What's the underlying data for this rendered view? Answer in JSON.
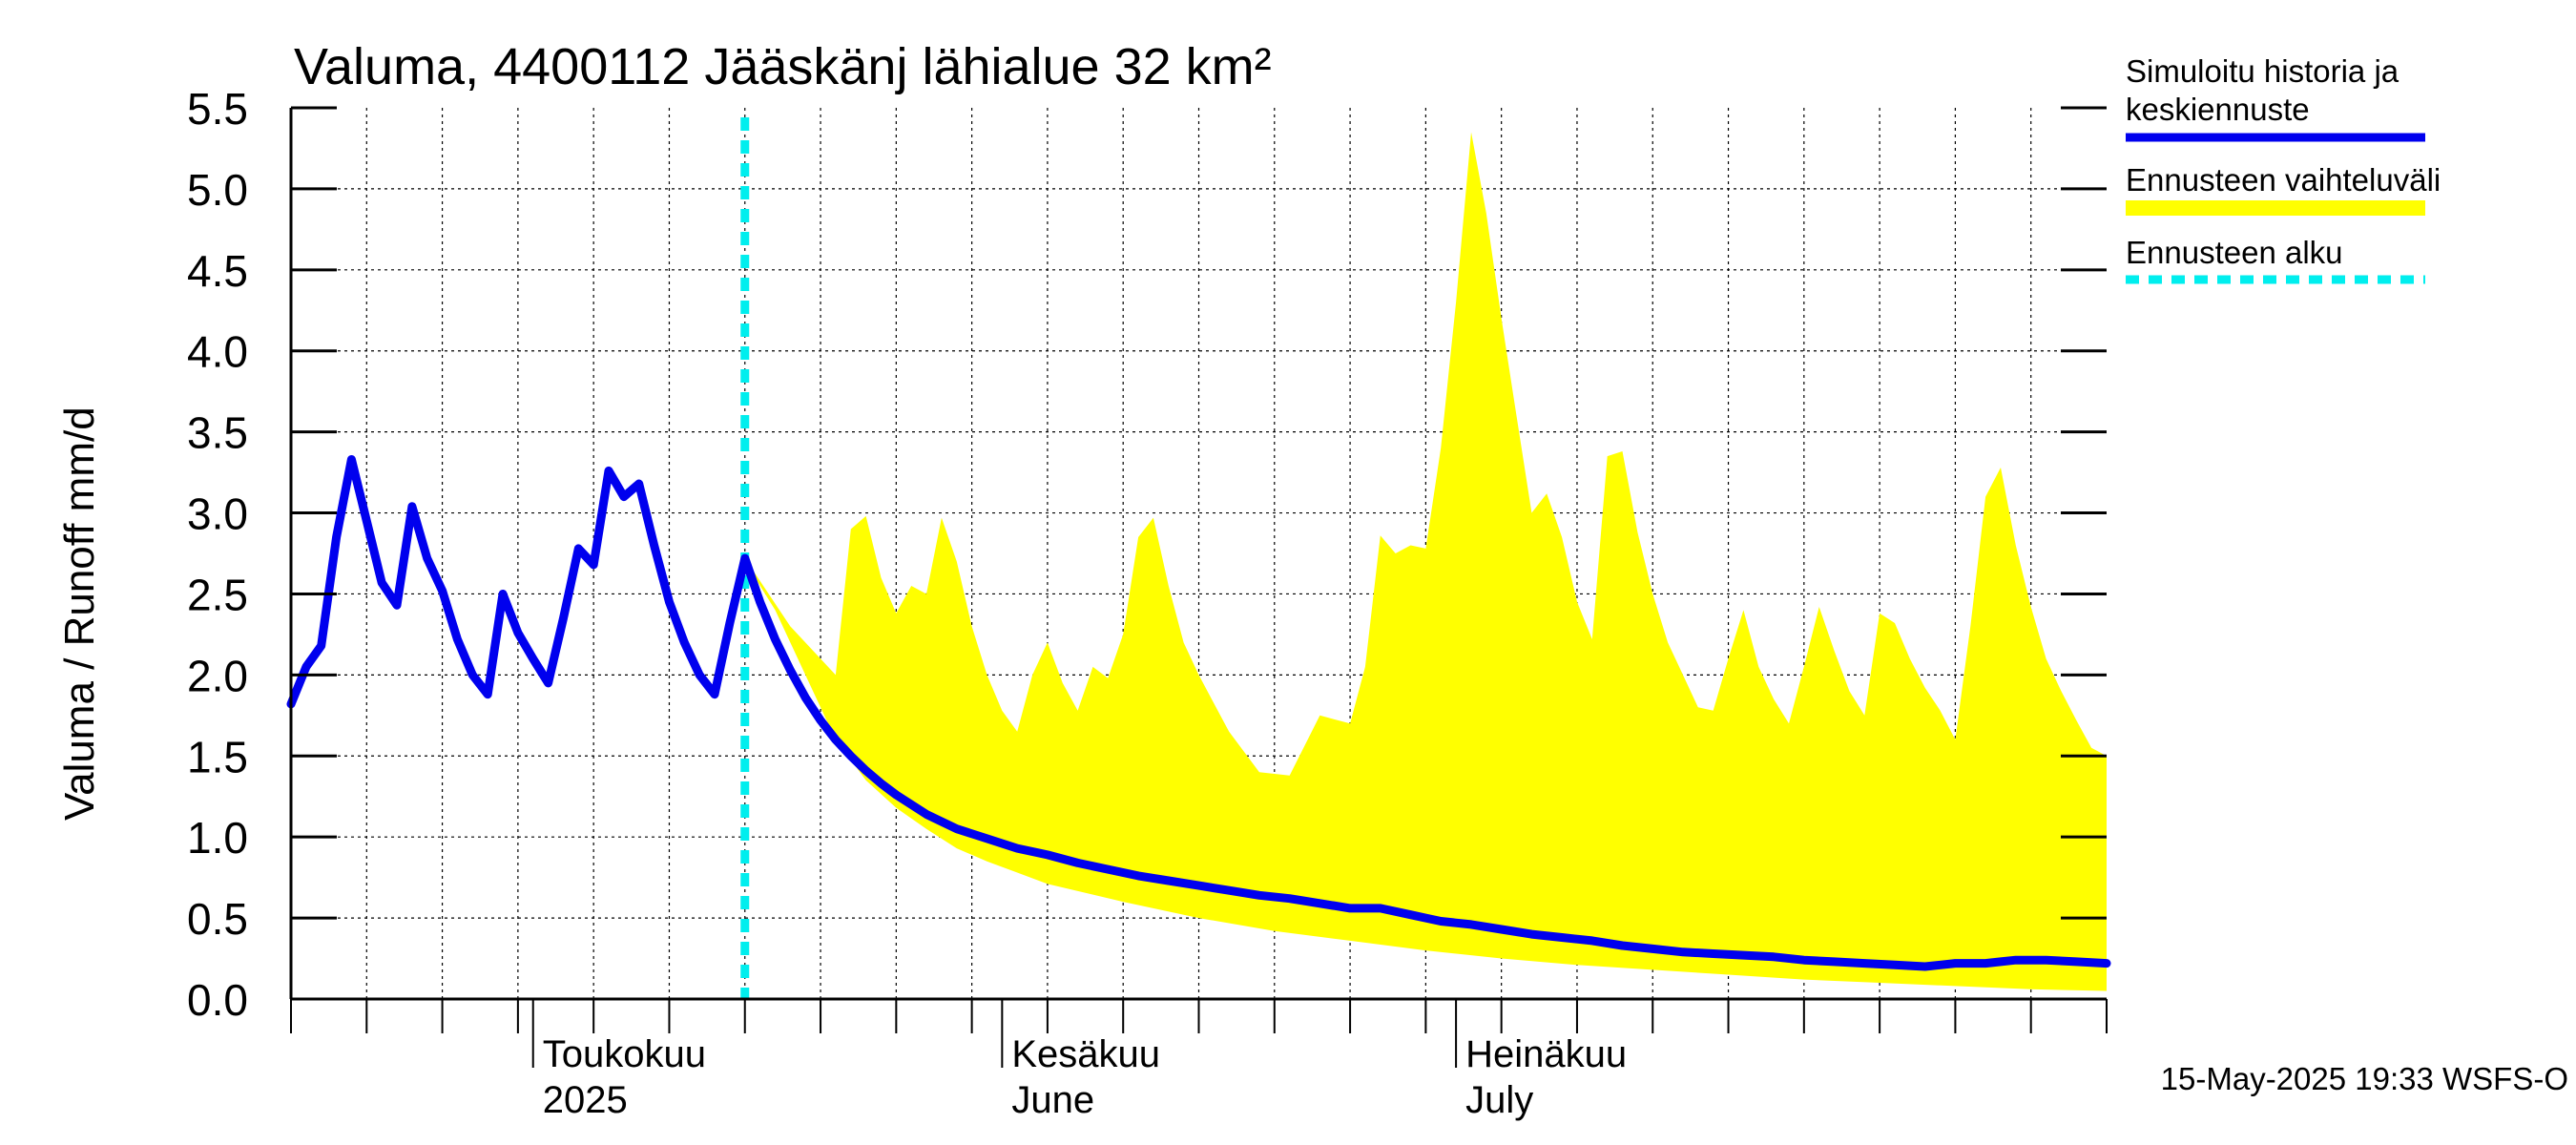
{
  "chart_data": {
    "type": "line",
    "title": "Valuma, 4400112 Jääskänj lähialue 32 km²",
    "ylabel": "Valuma / Runoff     mm/d",
    "ylim": [
      0,
      5.5
    ],
    "yticks": [
      "0.0",
      "0.5",
      "1.0",
      "1.5",
      "2.0",
      "2.5",
      "3.0",
      "3.5",
      "4.0",
      "4.5",
      "5.0",
      "5.5"
    ],
    "xlim_days": [
      0,
      120
    ],
    "month_labels": [
      {
        "line1": "Toukokuu",
        "line2": "2025",
        "day": 16
      },
      {
        "line1": "Kesäkuu",
        "line2": "June",
        "day": 47
      },
      {
        "line1": "Heinäkuu",
        "line2": "July",
        "day": 77
      }
    ],
    "forecast_start_day": 30,
    "legend": [
      {
        "label_line1": "Simuloitu historia ja",
        "label_line2": "keskiennuste",
        "color": "#0000ee",
        "style": "solid"
      },
      {
        "label_line1": "Ennusteen vaihteluväli",
        "label_line2": "",
        "color": "#ffff00",
        "style": "band"
      },
      {
        "label_line1": "Ennusteen alku",
        "label_line2": "",
        "color": "#00eeee",
        "style": "dashed"
      }
    ],
    "timestamp": "15-May-2025 19:33 WSFS-O",
    "series": [
      {
        "name": "Simuloitu historia ja keskiennuste",
        "color": "#0000ee",
        "x": [
          0,
          1,
          2,
          3,
          4,
          5,
          6,
          7,
          8,
          9,
          10,
          11,
          12,
          13,
          14,
          15,
          16,
          17,
          18,
          19,
          20,
          21,
          22,
          23,
          24,
          25,
          26,
          27,
          28,
          29,
          30,
          31,
          32,
          33,
          34,
          35,
          36,
          37,
          38,
          39,
          40,
          42,
          44,
          46,
          48,
          50,
          52,
          54,
          56,
          58,
          60,
          62,
          64,
          66,
          68,
          70,
          72,
          74,
          75,
          76,
          78,
          80,
          82,
          84,
          86,
          88,
          90,
          92,
          94,
          96,
          98,
          100,
          102,
          104,
          106,
          108,
          110,
          112,
          113,
          114,
          115,
          116,
          118,
          120
        ],
        "values": [
          1.82,
          2.05,
          2.18,
          2.85,
          3.33,
          2.95,
          2.57,
          2.43,
          3.04,
          2.72,
          2.52,
          2.22,
          2.0,
          1.88,
          2.5,
          2.26,
          2.1,
          1.95,
          2.35,
          2.78,
          2.68,
          3.26,
          3.1,
          3.18,
          2.8,
          2.45,
          2.2,
          2.0,
          1.88,
          2.32,
          2.72,
          2.45,
          2.22,
          2.03,
          1.86,
          1.72,
          1.6,
          1.5,
          1.41,
          1.33,
          1.26,
          1.14,
          1.05,
          0.99,
          0.93,
          0.89,
          0.84,
          0.8,
          0.76,
          0.73,
          0.7,
          0.67,
          0.64,
          0.62,
          0.59,
          0.56,
          0.56,
          0.52,
          0.5,
          0.48,
          0.46,
          0.43,
          0.4,
          0.38,
          0.36,
          0.33,
          0.31,
          0.29,
          0.28,
          0.27,
          0.26,
          0.24,
          0.23,
          0.22,
          0.21,
          0.2,
          0.22,
          0.22,
          0.23,
          0.24,
          0.24,
          0.24,
          0.23,
          0.22
        ]
      },
      {
        "name": "Ennusteen vaihteluväli upper",
        "color": "#ffff00",
        "x": [
          30,
          33,
          36,
          37,
          38,
          39,
          40,
          41,
          42,
          43,
          44,
          45,
          46,
          47,
          48,
          49,
          50,
          51,
          52,
          53,
          54,
          55,
          56,
          57,
          58,
          59,
          60,
          62,
          64,
          66,
          68,
          70,
          71,
          72,
          73,
          74,
          75,
          76,
          77,
          78,
          79,
          80,
          81,
          82,
          83,
          84,
          85,
          86,
          87,
          88,
          89,
          90,
          91,
          92,
          93,
          94,
          95,
          96,
          97,
          98,
          99,
          100,
          101,
          102,
          103,
          104,
          105,
          106,
          107,
          108,
          109,
          110,
          111,
          112,
          113,
          114,
          115,
          116,
          117,
          118,
          119,
          120
        ],
        "values": [
          2.72,
          2.3,
          2.0,
          2.9,
          2.98,
          2.6,
          2.38,
          2.55,
          2.5,
          2.97,
          2.7,
          2.3,
          2.0,
          1.78,
          1.65,
          2.0,
          2.2,
          1.95,
          1.78,
          2.05,
          1.98,
          2.25,
          2.85,
          2.97,
          2.55,
          2.2,
          2.0,
          1.65,
          1.4,
          1.38,
          1.75,
          1.7,
          2.05,
          2.86,
          2.75,
          2.8,
          2.78,
          3.4,
          4.3,
          5.35,
          4.85,
          4.2,
          3.6,
          3.0,
          3.12,
          2.85,
          2.45,
          2.22,
          3.35,
          3.38,
          2.88,
          2.5,
          2.2,
          2.0,
          1.8,
          1.78,
          2.1,
          2.4,
          2.05,
          1.85,
          1.7,
          2.05,
          2.42,
          2.15,
          1.9,
          1.75,
          2.38,
          2.32,
          2.1,
          1.92,
          1.78,
          1.6,
          2.3,
          3.1,
          3.28,
          2.8,
          2.42,
          2.1,
          1.9,
          1.72,
          1.55,
          1.5
        ]
      },
      {
        "name": "Ennusteen vaihteluväli lower",
        "color": "#ffff00",
        "x": [
          30,
          32,
          34,
          36,
          38,
          40,
          42,
          44,
          46,
          48,
          50,
          55,
          60,
          65,
          70,
          75,
          80,
          85,
          90,
          95,
          100,
          105,
          110,
          115,
          120
        ],
        "values": [
          2.7,
          2.4,
          2.0,
          1.6,
          1.35,
          1.18,
          1.05,
          0.93,
          0.85,
          0.78,
          0.71,
          0.6,
          0.5,
          0.42,
          0.36,
          0.3,
          0.25,
          0.21,
          0.18,
          0.15,
          0.12,
          0.1,
          0.08,
          0.06,
          0.05
        ]
      }
    ]
  }
}
